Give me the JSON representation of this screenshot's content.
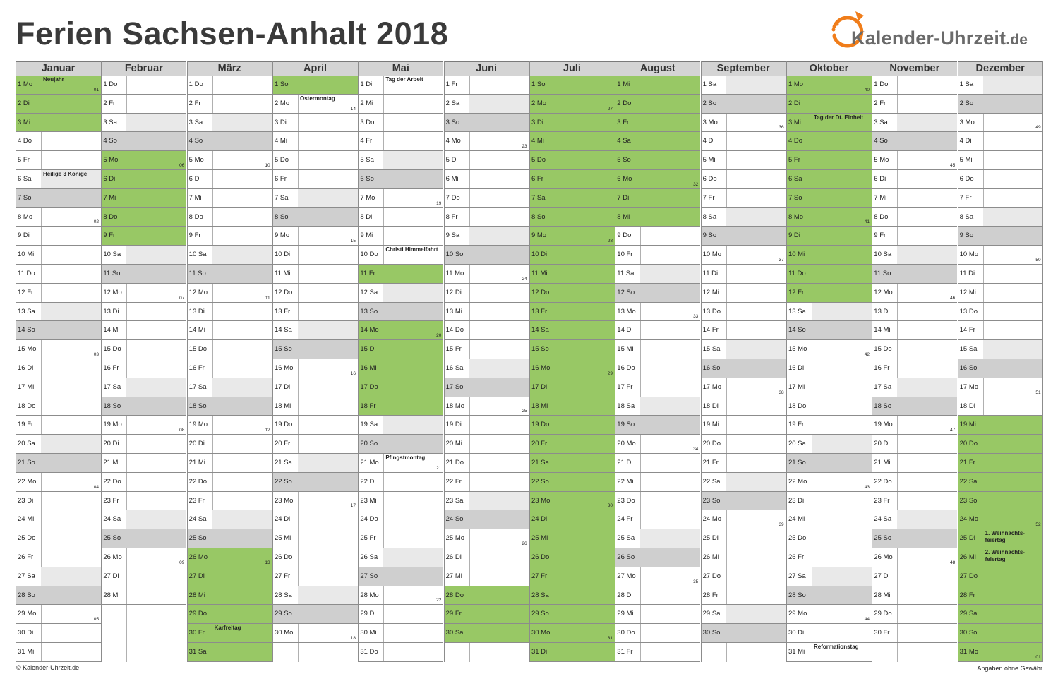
{
  "title": "Ferien Sachsen-Anhalt 2018",
  "logo": {
    "brand": "Kalender-Uhrzeit",
    "tld": ".de",
    "accent": "#f07d1a"
  },
  "footer": {
    "left": "© Kalender-Uhrzeit.de",
    "right": "Angaben ohne Gewähr"
  },
  "colors": {
    "ferien": "#98c865",
    "sunday": "#cfcfcf",
    "saturday": "#e9e9e9"
  },
  "weekdays": [
    "Mo",
    "Di",
    "Mi",
    "Do",
    "Fr",
    "Sa",
    "So"
  ],
  "year": 2018,
  "months": [
    {
      "name": "Januar",
      "days": 31
    },
    {
      "name": "Februar",
      "days": 28
    },
    {
      "name": "März",
      "days": 31
    },
    {
      "name": "April",
      "days": 30
    },
    {
      "name": "Mai",
      "days": 31
    },
    {
      "name": "Juni",
      "days": 30
    },
    {
      "name": "Juli",
      "days": 31
    },
    {
      "name": "August",
      "days": 31
    },
    {
      "name": "September",
      "days": 30
    },
    {
      "name": "Oktober",
      "days": 31
    },
    {
      "name": "November",
      "days": 30
    },
    {
      "name": "Dezember",
      "days": 31
    }
  ],
  "ferien": [
    {
      "month": 1,
      "from": 1,
      "to": 3
    },
    {
      "month": 2,
      "from": 5,
      "to": 9
    },
    {
      "month": 3,
      "from": 26,
      "to": 31
    },
    {
      "month": 4,
      "from": 1,
      "to": 1
    },
    {
      "month": 5,
      "from": 11,
      "to": 11
    },
    {
      "month": 5,
      "from": 14,
      "to": 18
    },
    {
      "month": 6,
      "from": 28,
      "to": 30
    },
    {
      "month": 7,
      "from": 1,
      "to": 31
    },
    {
      "month": 8,
      "from": 1,
      "to": 8
    },
    {
      "month": 10,
      "from": 1,
      "to": 12
    },
    {
      "month": 12,
      "from": 19,
      "to": 31
    }
  ],
  "holidays": [
    {
      "month": 1,
      "day": 1,
      "name": "Neujahr"
    },
    {
      "month": 1,
      "day": 6,
      "name": "Heilige 3 Könige"
    },
    {
      "month": 3,
      "day": 30,
      "name": "Karfreitag"
    },
    {
      "month": 4,
      "day": 2,
      "name": "Ostermontag"
    },
    {
      "month": 5,
      "day": 1,
      "name": "Tag der Arbeit"
    },
    {
      "month": 5,
      "day": 10,
      "name": "Christi Himmelfahrt"
    },
    {
      "month": 5,
      "day": 21,
      "name": "Pfingstmontag"
    },
    {
      "month": 10,
      "day": 3,
      "name": "Tag der Dt. Einheit"
    },
    {
      "month": 10,
      "day": 31,
      "name": "Reformationstag"
    },
    {
      "month": 12,
      "day": 25,
      "name": "1. Weihnachts-feiertag"
    },
    {
      "month": 12,
      "day": 26,
      "name": "2. Weihnachts-feiertag"
    }
  ]
}
